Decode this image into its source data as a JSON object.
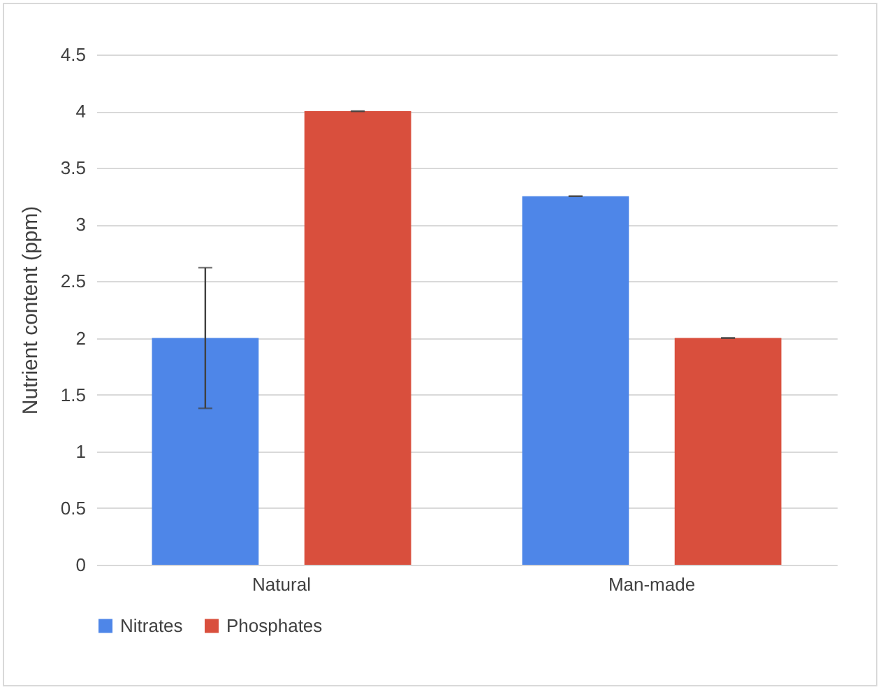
{
  "chart_data": {
    "type": "bar",
    "ylabel": "Nutrient content (ppm)",
    "categories": [
      "Natural",
      "Man-made"
    ],
    "series": [
      {
        "name": "Nitrates",
        "color": "#4e86e8",
        "values": [
          2,
          3.25
        ],
        "errors": [
          0.62,
          0
        ]
      },
      {
        "name": "Phosphates",
        "color": "#d94f3d",
        "values": [
          4,
          2
        ],
        "errors": [
          0,
          0
        ]
      }
    ],
    "ylim": [
      0,
      4.5
    ],
    "yticks": [
      0,
      0.5,
      1,
      1.5,
      2,
      2.5,
      3,
      3.5,
      4,
      4.5
    ],
    "grid": "y",
    "legend": "bottom"
  }
}
